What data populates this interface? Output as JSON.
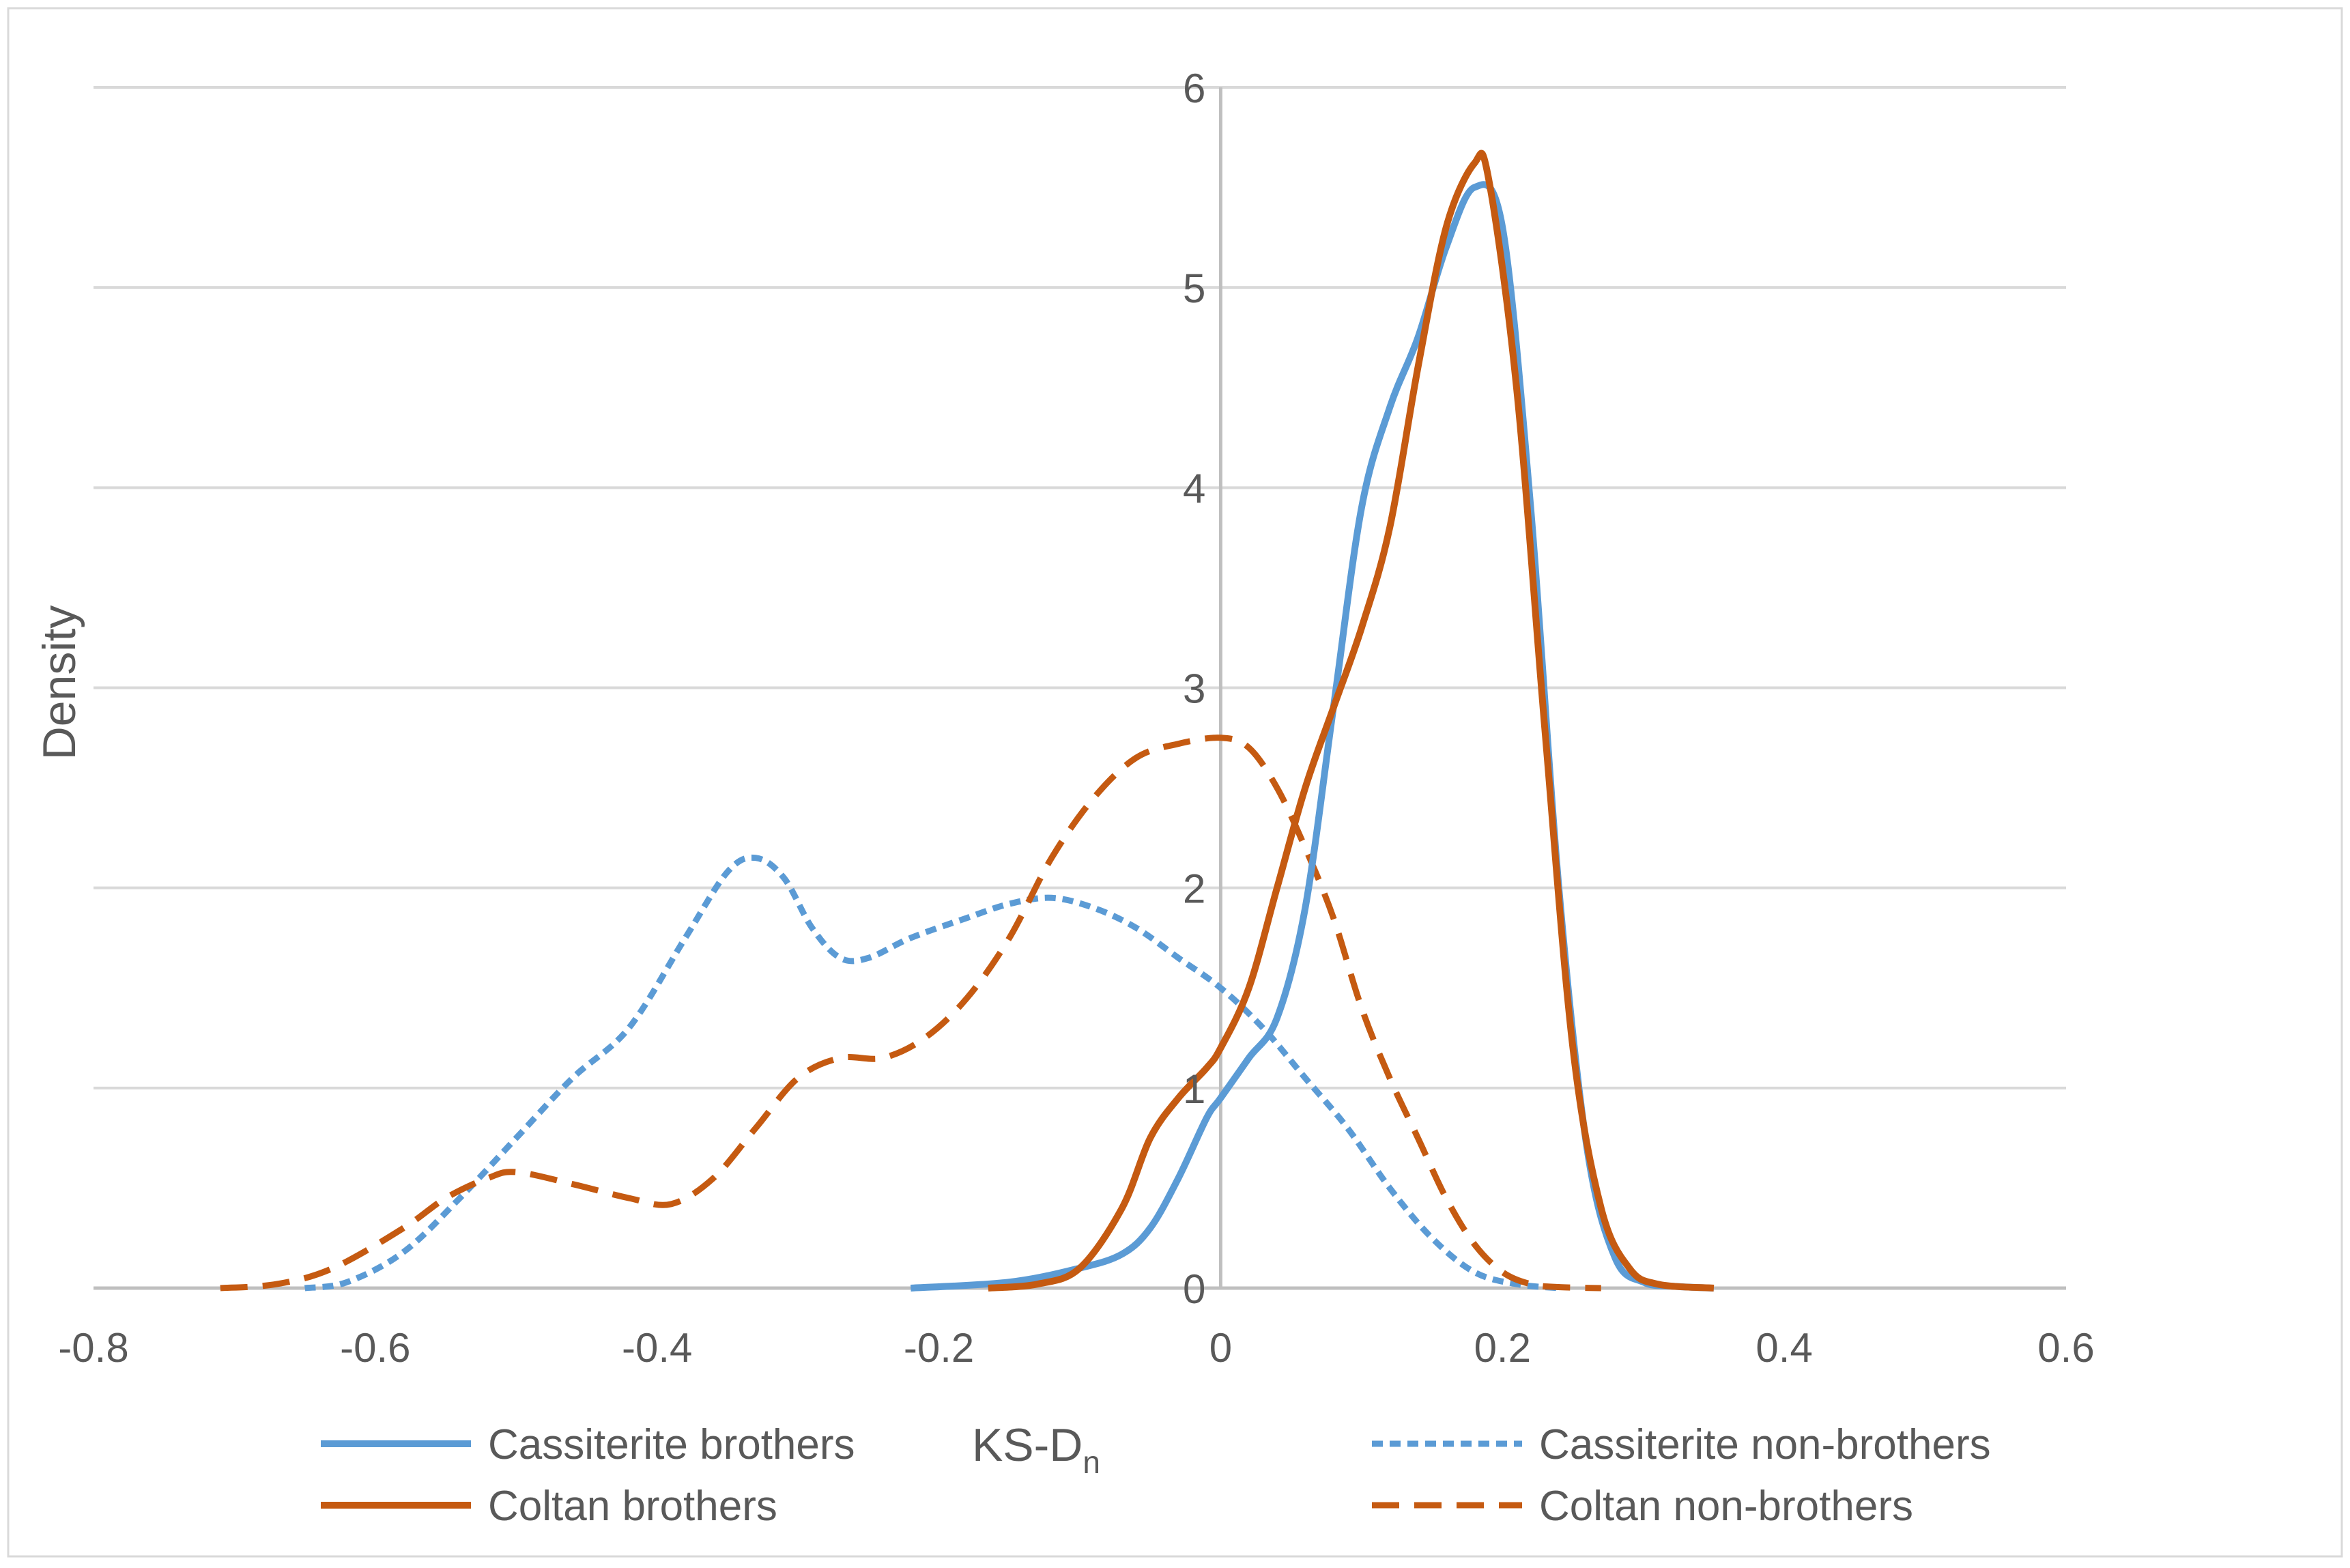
{
  "chart_data": {
    "type": "line",
    "title": "",
    "xlabel_main": "KS-D",
    "xlabel_sub": "n",
    "ylabel": "Density",
    "xlim": [
      -0.8,
      0.6
    ],
    "ylim": [
      0,
      6
    ],
    "x_ticks": [
      -0.8,
      -0.6,
      -0.4,
      -0.2,
      0,
      0.2,
      0.4,
      0.6
    ],
    "x_tick_labels": [
      "-0.8",
      "-0.6",
      "-0.4",
      "-0.2",
      "0",
      "0.2",
      "0.4",
      "0.6"
    ],
    "y_ticks": [
      0,
      1,
      2,
      3,
      4,
      5,
      6
    ],
    "y_tick_labels": [
      "0",
      "1",
      "2",
      "3",
      "4",
      "5",
      "6"
    ],
    "grid": "horizontal",
    "legend_position": "bottom",
    "colors": {
      "cassiterite": "#5B9BD5",
      "coltan": "#C55A11",
      "grid": "#D9D9D9",
      "axis": "#BFBFBF",
      "text": "#595959"
    },
    "series": [
      {
        "name": "Cassiterite brothers",
        "style": "solid",
        "color": "#5B9BD5",
        "x": [
          -0.22,
          -0.15,
          -0.1,
          -0.07,
          -0.05,
          -0.03,
          -0.01,
          0.0,
          0.02,
          0.04,
          0.06,
          0.08,
          0.1,
          0.12,
          0.14,
          0.16,
          0.18,
          0.2,
          0.22,
          0.24,
          0.26,
          0.28,
          0.3,
          0.32,
          0.35
        ],
        "values": [
          0.0,
          0.03,
          0.1,
          0.17,
          0.3,
          0.55,
          0.85,
          0.95,
          1.15,
          1.35,
          1.9,
          2.9,
          3.9,
          4.4,
          4.75,
          5.2,
          5.5,
          5.3,
          3.9,
          2.0,
          0.7,
          0.15,
          0.03,
          0.01,
          0.0
        ]
      },
      {
        "name": "Cassiterite non-brothers",
        "style": "dotted",
        "color": "#5B9BD5",
        "x": [
          -0.65,
          -0.62,
          -0.58,
          -0.54,
          -0.5,
          -0.46,
          -0.42,
          -0.38,
          -0.35,
          -0.33,
          -0.31,
          -0.29,
          -0.27,
          -0.25,
          -0.22,
          -0.18,
          -0.15,
          -0.12,
          -0.09,
          -0.06,
          -0.03,
          0.0,
          0.03,
          0.06,
          0.09,
          0.12,
          0.15,
          0.18,
          0.21,
          0.24
        ],
        "values": [
          0.0,
          0.03,
          0.18,
          0.45,
          0.75,
          1.05,
          1.3,
          1.75,
          2.08,
          2.15,
          2.05,
          1.8,
          1.65,
          1.65,
          1.75,
          1.85,
          1.92,
          1.95,
          1.9,
          1.8,
          1.65,
          1.5,
          1.3,
          1.05,
          0.8,
          0.5,
          0.25,
          0.08,
          0.02,
          0.0
        ]
      },
      {
        "name": "Coltan brothers",
        "style": "solid",
        "color": "#C55A11",
        "x": [
          -0.165,
          -0.13,
          -0.1,
          -0.07,
          -0.05,
          -0.03,
          -0.01,
          0.0,
          0.02,
          0.04,
          0.06,
          0.08,
          0.1,
          0.12,
          0.14,
          0.16,
          0.18,
          0.19,
          0.21,
          0.23,
          0.25,
          0.27,
          0.29,
          0.31,
          0.35
        ],
        "values": [
          0.0,
          0.02,
          0.1,
          0.4,
          0.75,
          0.95,
          1.1,
          1.2,
          1.5,
          2.0,
          2.5,
          2.9,
          3.3,
          3.8,
          4.6,
          5.3,
          5.62,
          5.55,
          4.5,
          2.8,
          1.2,
          0.4,
          0.1,
          0.02,
          0.0
        ]
      },
      {
        "name": "Coltan non-brothers",
        "style": "dashed",
        "color": "#C55A11",
        "x": [
          -0.71,
          -0.67,
          -0.63,
          -0.58,
          -0.55,
          -0.52,
          -0.5,
          -0.46,
          -0.42,
          -0.39,
          -0.36,
          -0.33,
          -0.3,
          -0.27,
          -0.24,
          -0.21,
          -0.18,
          -0.15,
          -0.12,
          -0.09,
          -0.06,
          -0.03,
          0.0,
          0.02,
          0.04,
          0.06,
          0.08,
          0.1,
          0.12,
          0.14,
          0.16,
          0.18,
          0.2,
          0.22,
          0.24,
          0.27
        ],
        "values": [
          0.0,
          0.02,
          0.1,
          0.3,
          0.45,
          0.55,
          0.58,
          0.52,
          0.45,
          0.42,
          0.55,
          0.8,
          1.05,
          1.15,
          1.15,
          1.25,
          1.45,
          1.75,
          2.15,
          2.45,
          2.65,
          2.72,
          2.75,
          2.7,
          2.5,
          2.2,
          1.85,
          1.4,
          1.05,
          0.75,
          0.45,
          0.22,
          0.08,
          0.02,
          0.005,
          0.0
        ]
      }
    ]
  }
}
